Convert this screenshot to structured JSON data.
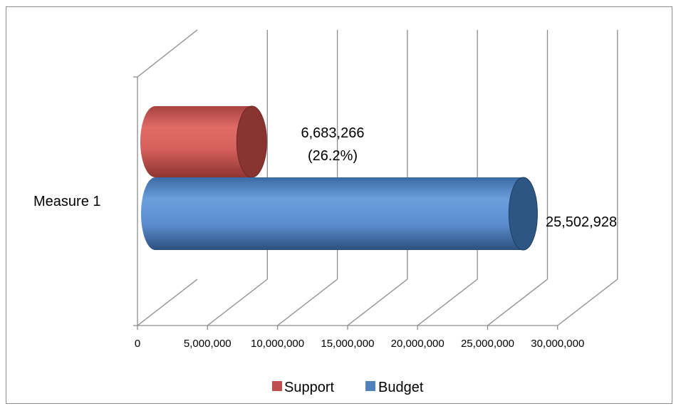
{
  "chart_data": {
    "type": "bar",
    "orientation": "horizontal",
    "style": "3d-cylinder",
    "categories": [
      "Measure 1"
    ],
    "series": [
      {
        "name": "Support",
        "values": [
          6683266
        ],
        "label": "6,683,266",
        "sublabel": "(26.2%)",
        "color": "#c0504d"
      },
      {
        "name": "Budget",
        "values": [
          25502928
        ],
        "label": "25,502,928",
        "color": "#4f81bd"
      }
    ],
    "x_ticks": [
      "0",
      "5,000,000",
      "10,000,000",
      "15,000,000",
      "20,000,000",
      "25,000,000",
      "30,000,000"
    ],
    "xlim": [
      0,
      30000000
    ],
    "grid": true,
    "legend_position": "bottom"
  }
}
